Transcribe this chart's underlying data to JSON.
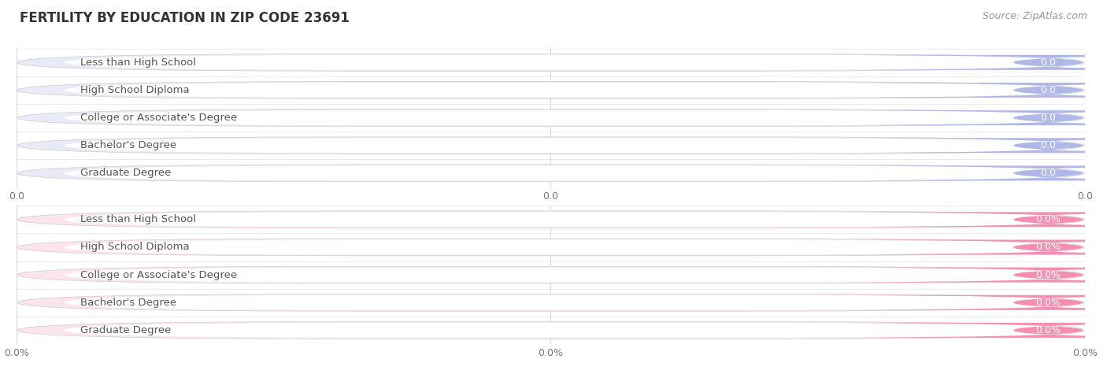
{
  "title": "FERTILITY BY EDUCATION IN ZIP CODE 23691",
  "source": "Source: ZipAtlas.com",
  "categories": [
    "Less than High School",
    "High School Diploma",
    "College or Associate's Degree",
    "Bachelor's Degree",
    "Graduate Degree"
  ],
  "top_values": [
    0.0,
    0.0,
    0.0,
    0.0,
    0.0
  ],
  "bottom_values": [
    0.0,
    0.0,
    0.0,
    0.0,
    0.0
  ],
  "top_bar_color": "#b0b8e8",
  "top_bg_color": "#e8eaf6",
  "top_bar_bg": "#dde0f5",
  "bottom_bar_color": "#f48fb1",
  "bottom_bg_color": "#fce4ec",
  "bottom_bar_bg": "#f8c8d8",
  "title_fontsize": 12,
  "label_fontsize": 9.5,
  "tick_fontsize": 9,
  "source_fontsize": 9,
  "background_color": "#ffffff",
  "grid_color": "#cccccc",
  "text_color": "#555555",
  "value_color_top": "#7a88cc",
  "value_color_bottom": "#e8709a"
}
